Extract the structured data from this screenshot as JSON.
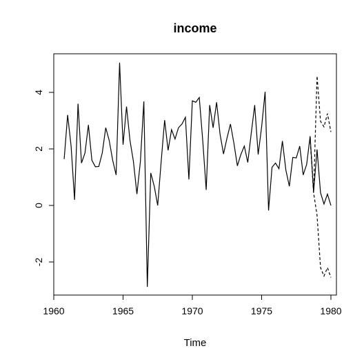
{
  "chart_data": {
    "type": "line",
    "title": "income",
    "xlabel": "Time",
    "ylabel": "",
    "xlim": [
      1960,
      1980
    ],
    "ylim": [
      -3.2,
      5.3
    ],
    "xticks": [
      1960,
      1965,
      1970,
      1975,
      1980
    ],
    "yticks": [
      -2,
      0,
      2,
      4
    ],
    "xtick_labels": [
      "1960",
      "1965",
      "1970",
      "1975",
      "1980"
    ],
    "ytick_labels": [
      "-2",
      "0",
      "2",
      "4"
    ],
    "grid": false,
    "legend": "none",
    "series": [
      {
        "style": "solid",
        "x_start": 1960.75,
        "step": 0.25,
        "values": [
          1.64,
          3.2,
          2.1,
          0.2,
          3.6,
          1.5,
          1.85,
          2.85,
          1.6,
          1.37,
          1.38,
          1.86,
          2.75,
          2.3,
          1.6,
          1.08,
          5.05,
          2.15,
          3.5,
          2.3,
          1.55,
          0.4,
          1.55,
          3.68,
          -2.88,
          1.15,
          0.68,
          0.0,
          1.55,
          3.02,
          1.95,
          2.68,
          2.35,
          2.75,
          2.88,
          3.12,
          0.92,
          3.7,
          3.65,
          3.82,
          2.3,
          0.55,
          3.55,
          2.75,
          3.65,
          2.52,
          1.82,
          2.38,
          2.88,
          2.2,
          1.4,
          1.8,
          2.1,
          1.52,
          2.55,
          3.55,
          1.8,
          2.78,
          4.02,
          -0.18,
          1.35,
          1.5,
          1.3,
          2.28,
          1.25,
          0.68,
          1.7,
          1.68,
          2.1,
          1.08,
          1.45,
          2.45,
          0.48,
          1.98,
          0.45,
          0.05,
          0.4,
          0.0
        ]
      },
      {
        "style": "dashed",
        "x": [
          1978.5,
          1978.75,
          1979.0,
          1979.25,
          1979.5,
          1979.75,
          1980.0
        ],
        "values": [
          2.42,
          0.45,
          4.58,
          2.98,
          2.78,
          3.25,
          2.6
        ]
      },
      {
        "style": "dashed",
        "x": [
          1978.5,
          1978.75,
          1979.0,
          1979.25,
          1979.5,
          1979.75,
          1980.0
        ],
        "values": [
          2.42,
          0.45,
          -0.35,
          -2.2,
          -2.5,
          -2.2,
          -2.55
        ]
      }
    ]
  }
}
